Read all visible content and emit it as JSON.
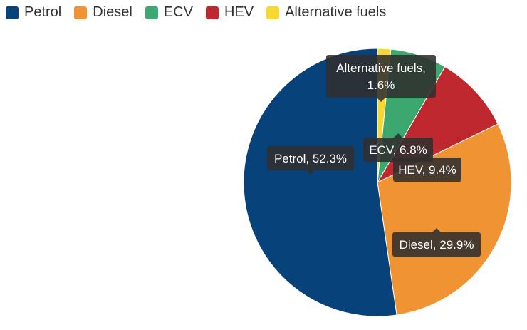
{
  "chart_data": {
    "type": "pie",
    "title": "",
    "series": [
      {
        "name": "Petrol",
        "value": 52.3,
        "color": "#08427a"
      },
      {
        "name": "Diesel",
        "value": 29.9,
        "color": "#f09433"
      },
      {
        "name": "HEV",
        "value": 9.4,
        "color": "#c0282f"
      },
      {
        "name": "ECV",
        "value": 6.8,
        "color": "#3aa86f"
      },
      {
        "name": "Alternative fuels",
        "value": 1.6,
        "color": "#f7d830"
      }
    ],
    "legend": {
      "placement": "top-left",
      "order": [
        "Petrol",
        "Diesel",
        "ECV",
        "HEV",
        "Alternative fuels"
      ]
    },
    "data_labels": [
      {
        "series": "Petrol",
        "text": "Petrol, 52.3%"
      },
      {
        "series": "Diesel",
        "text": "Diesel, 29.9%"
      },
      {
        "series": "HEV",
        "text": "HEV, 9.4%"
      },
      {
        "series": "ECV",
        "text": "ECV, 6.8%"
      },
      {
        "series": "Alternative fuels",
        "lines": [
          "Alternative fuels,",
          "1.6%"
        ]
      }
    ],
    "label_style": {
      "background": "#2f2f2f",
      "opacity": 0.88,
      "text_color": "#ffffff"
    }
  }
}
